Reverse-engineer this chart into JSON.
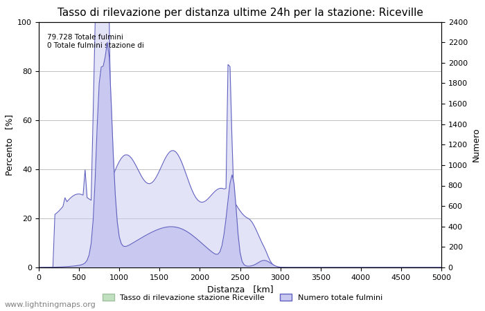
{
  "title": "Tasso di rilevazione per distanza ultime 24h per la stazione: Riceville",
  "xlabel": "Distanza   [km]",
  "ylabel_left": "Percento   [%]",
  "ylabel_right": "Numero",
  "annotation_line1": "79.728 Totale fulmini",
  "annotation_line2": "0 Totale fulmini stazione di",
  "xlim": [
    0,
    5000
  ],
  "ylim_left": [
    0,
    100
  ],
  "ylim_right": [
    0,
    2400
  ],
  "xticks": [
    0,
    500,
    1000,
    1500,
    2000,
    2500,
    3000,
    3500,
    4000,
    4500,
    5000
  ],
  "yticks_left": [
    0,
    20,
    40,
    60,
    80,
    100
  ],
  "yticks_right": [
    0,
    200,
    400,
    600,
    800,
    1000,
    1200,
    1400,
    1600,
    1800,
    2000,
    2200,
    2400
  ],
  "legend_label_green": "Tasso di rilevazione stazione Riceville",
  "legend_label_blue": "Numero totale fulmini",
  "fill_color_blue": "#c8c8f0",
  "line_color_blue": "#6060c0",
  "fill_color_green": "#c0e0c0",
  "watermark": "www.lightningmaps.org",
  "background_color": "#ffffff",
  "grid_color": "#c0c0c0",
  "title_fontsize": 11,
  "axis_label_fontsize": 9,
  "tick_fontsize": 8,
  "watermark_fontsize": 8
}
